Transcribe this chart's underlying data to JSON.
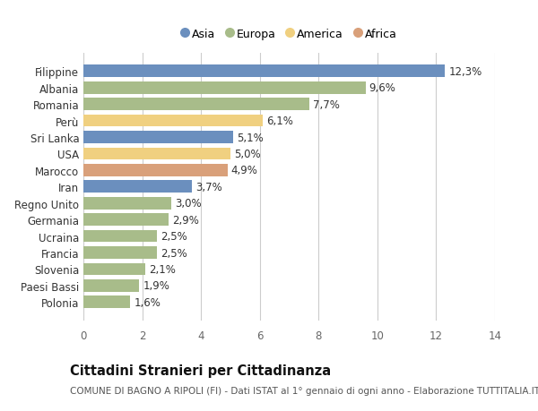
{
  "countries": [
    "Polonia",
    "Paesi Bassi",
    "Slovenia",
    "Francia",
    "Ucraina",
    "Germania",
    "Regno Unito",
    "Iran",
    "Marocco",
    "USA",
    "Sri Lanka",
    "Perù",
    "Romania",
    "Albania",
    "Filippine"
  ],
  "values": [
    1.6,
    1.9,
    2.1,
    2.5,
    2.5,
    2.9,
    3.0,
    3.7,
    4.9,
    5.0,
    5.1,
    6.1,
    7.7,
    9.6,
    12.3
  ],
  "continents": [
    "Europa",
    "Europa",
    "Europa",
    "Europa",
    "Europa",
    "Europa",
    "Europa",
    "Asia",
    "Africa",
    "America",
    "Asia",
    "America",
    "Europa",
    "Europa",
    "Asia"
  ],
  "colors": {
    "Asia": "#6b8fbe",
    "Europa": "#a8bc8a",
    "America": "#f0d080",
    "Africa": "#d9a07a"
  },
  "xlim": [
    0,
    14
  ],
  "xticks": [
    0,
    2,
    4,
    6,
    8,
    10,
    12,
    14
  ],
  "title": "Cittadini Stranieri per Cittadinanza",
  "subtitle": "COMUNE DI BAGNO A RIPOLI (FI) - Dati ISTAT al 1° gennaio di ogni anno - Elaborazione TUTTITALIA.IT",
  "background_color": "#ffffff",
  "bar_height": 0.75,
  "label_fontsize": 8.5,
  "tick_fontsize": 8.5,
  "value_fontsize": 8.5,
  "title_fontsize": 10.5,
  "subtitle_fontsize": 7.5,
  "legend_order": [
    "Asia",
    "Europa",
    "America",
    "Africa"
  ]
}
